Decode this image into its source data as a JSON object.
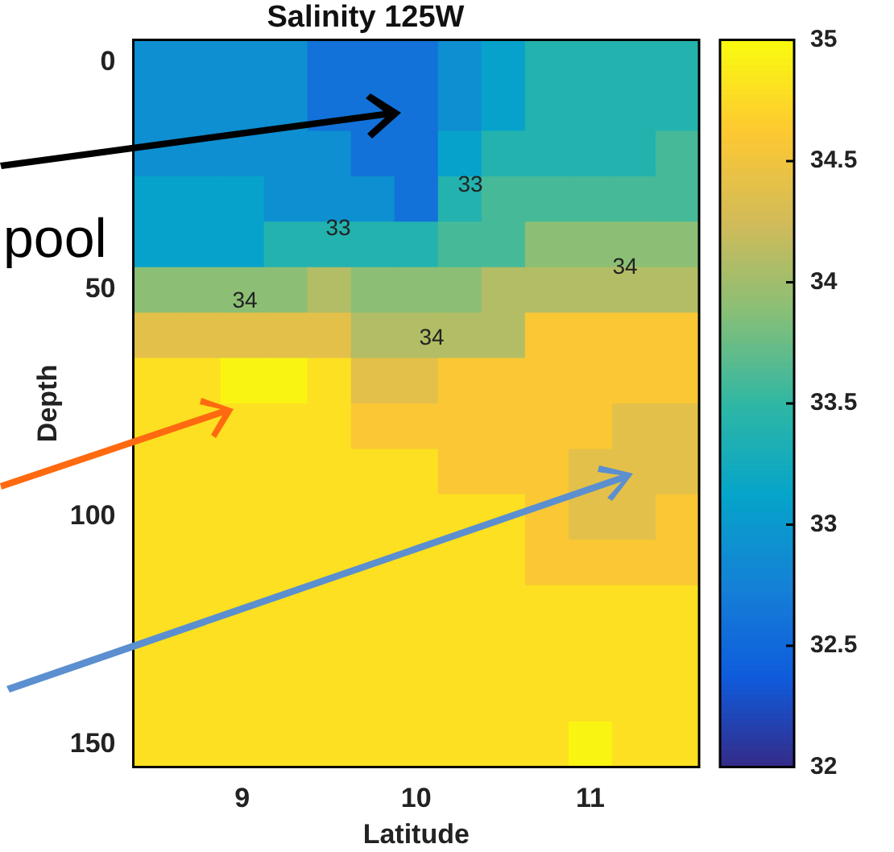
{
  "chart_data": {
    "type": "heatmap",
    "title": "Salinity 125W",
    "xlabel": "Latitude",
    "ylabel": "Depth",
    "categories": [
      null,
      null,
      "9",
      null,
      null,
      null,
      "10",
      null,
      null,
      null,
      "11",
      null,
      null
    ],
    "y_categories": [
      "0",
      null,
      null,
      null,
      null,
      "50",
      null,
      null,
      null,
      null,
      "100",
      null,
      null,
      null,
      null,
      "150"
    ],
    "cells": [
      [
        32.9,
        32.9,
        32.9,
        32.9,
        32.6,
        32.6,
        32.6,
        32.9,
        33.1,
        33.4,
        33.4,
        33.4,
        33.4
      ],
      [
        32.9,
        32.9,
        32.9,
        32.9,
        32.6,
        32.6,
        32.6,
        32.9,
        33.1,
        33.4,
        33.4,
        33.4,
        33.4
      ],
      [
        32.9,
        32.9,
        32.9,
        32.9,
        32.9,
        32.6,
        32.6,
        33.1,
        33.4,
        33.4,
        33.4,
        33.4,
        33.6
      ],
      [
        33.1,
        33.1,
        33.1,
        32.9,
        32.9,
        32.9,
        32.6,
        33.4,
        33.6,
        33.6,
        33.6,
        33.6,
        33.6
      ],
      [
        33.1,
        33.1,
        33.1,
        33.4,
        33.4,
        33.4,
        33.4,
        33.6,
        33.6,
        33.9,
        33.9,
        33.9,
        33.9
      ],
      [
        33.9,
        33.9,
        33.9,
        33.9,
        34.1,
        33.9,
        33.9,
        33.9,
        34.1,
        34.1,
        34.1,
        34.1,
        34.1
      ],
      [
        34.4,
        34.4,
        34.4,
        34.4,
        34.4,
        34.1,
        34.1,
        34.1,
        34.1,
        34.6,
        34.6,
        34.6,
        34.6
      ],
      [
        34.8,
        34.8,
        34.95,
        34.95,
        34.8,
        34.4,
        34.4,
        34.6,
        34.6,
        34.6,
        34.6,
        34.6,
        34.6
      ],
      [
        34.8,
        34.8,
        34.8,
        34.8,
        34.8,
        34.6,
        34.6,
        34.6,
        34.6,
        34.6,
        34.6,
        34.4,
        34.4
      ],
      [
        34.8,
        34.8,
        34.8,
        34.8,
        34.8,
        34.8,
        34.8,
        34.6,
        34.6,
        34.6,
        34.4,
        34.4,
        34.4
      ],
      [
        34.8,
        34.8,
        34.8,
        34.8,
        34.8,
        34.8,
        34.8,
        34.8,
        34.8,
        34.6,
        34.4,
        34.4,
        34.6
      ],
      [
        34.8,
        34.8,
        34.8,
        34.8,
        34.8,
        34.8,
        34.8,
        34.8,
        34.8,
        34.6,
        34.6,
        34.6,
        34.6
      ],
      [
        34.8,
        34.8,
        34.8,
        34.8,
        34.8,
        34.8,
        34.8,
        34.8,
        34.8,
        34.8,
        34.8,
        34.8,
        34.8
      ],
      [
        34.8,
        34.8,
        34.8,
        34.8,
        34.8,
        34.8,
        34.8,
        34.8,
        34.8,
        34.8,
        34.8,
        34.8,
        34.8
      ],
      [
        34.8,
        34.8,
        34.8,
        34.8,
        34.8,
        34.8,
        34.8,
        34.8,
        34.8,
        34.8,
        34.8,
        34.8,
        34.8
      ],
      [
        34.8,
        34.8,
        34.8,
        34.8,
        34.8,
        34.8,
        34.8,
        34.8,
        34.8,
        34.8,
        34.95,
        34.8,
        34.8
      ]
    ],
    "clim": [
      32,
      35
    ],
    "cticks": [
      32,
      32.5,
      33,
      33.5,
      34,
      34.5,
      35
    ],
    "annotations": [
      "pool",
      "33",
      "33",
      "34",
      "34",
      "34"
    ]
  }
}
